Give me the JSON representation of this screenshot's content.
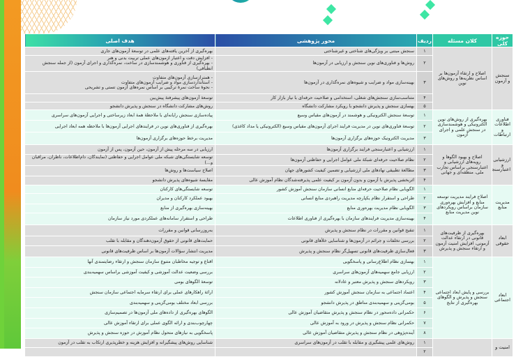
{
  "headers": {
    "domain": "حوزه کلی",
    "macro": "کلان مسئله",
    "row": "ردیف",
    "axis": "محور پژوهشی",
    "goal": "هدف اصلی"
  },
  "colors": {
    "header_start": "#3de0a6",
    "header_end": "#2b4fa6",
    "gray_row": "#dedede",
    "mint_row": "#e6faf3"
  },
  "sections": [
    {
      "domain": "سنجش و آزمون",
      "macro": "اصلاح و ارتقاء آزمون‌ها بر اساس نظریه‌ها و روش‌های نوین",
      "shade": "gray",
      "rows": [
        {
          "n": "۱",
          "axis": "سنجش مبتنی بر ویژگی‌های شناختی و غیرشناختی",
          "goal": "بهره‌گیری از آخرین یافته‌های علمی در توسعهٔ آزمون‌های جاری"
        },
        {
          "n": "۲",
          "axis": "روش‌ها و فناوری‌های نوین سنجش و ارزیابی در آزمون‌ها",
          "goal": "- افزایش دقت و اعتبار آزمون‌های عملی تربیت بدنی و هنر\n- بهره‌گیری از فناوری و هوشمندسازی در ساخت، نمره‌گذاری و اجرای آزمون (از جمله سنجش انطباقی)"
        },
        {
          "n": "۳",
          "axis": "بهینه‌سازی مواد و ضرایب و شیوه‌های نمره‌گذاری در آزمون‌ها",
          "goal": "- همترازسازی آزمون‌های متفاوت\n- استانداردسازی مواد و ضرایب آزمون‌های متفاوت\n- نحوهٔ ساخت نمرهٔ ترکیبی بر اساس نمره‌های آزمون تستی و تشریحی"
        },
        {
          "n": "۴",
          "axis": "متناسب‌سازی سنجش‌های شغلی، استخدامی و صلاحیت حرفه‌ای با نیاز بازار کار",
          "goal": "توسعهٔ آزمون‌های پیشرفتهٔ پیش‌بین"
        },
        {
          "n": "۵",
          "axis": "بهسازی سنجش و پذیرش دانشجو با رویکرد مشارکت دانشگاه",
          "goal": "روش‌های مشارکت دانشگاه در سنجش و پذیرش دانشجو"
        }
      ]
    },
    {
      "domain": "فناوری اطلاعات و ارتباطات",
      "macro": "بهره‌گیری از روش‌های نوین الکترونیکی و هوشمندسازی در سنجش علمی و اجرای آزمون",
      "shade": "mint",
      "rows": [
        {
          "n": "۱",
          "axis": "توسعهٔ سنجش الکترونیکی و هوشمند در آزمون‌های مقیاس وسیع",
          "goal": "پیاده‌سازی سنجش رایانه‌ای با ملاحظهٔ همهٔ ابعاد زیرساختی و اجرایی آزمون‌های سراسری"
        },
        {
          "n": "۲",
          "axis": "توسعهٔ فناوری‌های نوین در مدیریت فرایند اجرای آزمون‌های مقیاس وسیع (الکترونیکی یا مداد کاغذی)",
          "goal": "بهره‌گیری از فناوری‌های نوین در فرایندهای اجرایی آزمون‌ها با ملاحظه همه ابعاد اجرایی"
        },
        {
          "n": "۳",
          "axis": "مدیریت الکترونیک حوزه‌های برگزاری آزمون‌ها",
          "goal": "مدیریت برخط حوزه‌های برگزاری آزمون‌ها"
        }
      ]
    },
    {
      "domain": "ارزشیابی و اعتبارسنجی",
      "macro": "اصلاح و بهبود الگوها و رویه‌های ارزشیابی و اعتبارسنجی براساس تجارب ملی، منطقه‌ای و جهانی",
      "shade": "gray",
      "rows": [
        {
          "n": "۱",
          "axis": "ارزشیابی و اعتبارسنجی فرایند برگزاری آزمون‌ها",
          "goal": "ارزیابی در سه مرحله پیش از آزمون، حین آزمون، پس از آزمون"
        },
        {
          "n": "۲",
          "axis": "نظام صلاحیت حرفه‌ای شبکهٔ ملی عوامل اجرایی و حفاظتی آزمون‌ها",
          "goal": "توسعه شایستگی‌های شبکه ملی عوامل اجرایی و حفاظتی (نمایندگان، دام‌اطلاعات، ناظران، مراقبان و...)"
        },
        {
          "n": "۳",
          "axis": "مطالعهٔ تطبیقی نهادهای ملی ارزشیابی و تضمین کیفیت کشورهای جهان",
          "goal": "اصلاح سیاست‌ها و روش‌ها"
        },
        {
          "n": "۴",
          "axis": "اثربخشی پذیرش با آزمون و بدون آزمون بر کیفیت علمی پذیرفته‌شدگان نظام آموزش عالی",
          "goal": "مقایسهٔ شیوه‌های پذیرش دانشجو"
        }
      ]
    },
    {
      "domain": "مدیریت منابع",
      "macro": "اصلاح فرایند مدیریت توسعه منابع و افزایش بهره‌وری سازمان براساس رویکردهای نوین مدیریت منابع",
      "shade": "mint",
      "rows": [
        {
          "n": "۱",
          "axis": "الگویابی نظام صلاحیت حرفه‌ای منابع انسانی سازمان سنجش آموزش کشور",
          "goal": "توسعه شایستگی‌های کارکنان"
        },
        {
          "n": "۲",
          "axis": "طراحی و استقرار نظام یکپارچه مدیریت راهبردی منابع انسانی",
          "goal": "بهبود عملکرد کارکنان و مدیران"
        },
        {
          "n": "۳",
          "axis": "الگویابی نظام مدیریت بهره‌وری منابع",
          "goal": "بهینه‌سازی بهره‌گیری از منابع"
        },
        {
          "n": "۴",
          "axis": "بهینه‌سازی مدیریت فرایندهای سازمان با بهره‌گیری از فناوری اطلاعات",
          "goal": "طراحی و استقرار سامانه‌های عملکردی مورد نیاز سازمان"
        }
      ]
    },
    {
      "domain": "ابعاد حقوقی",
      "macro": "بهره‌گیری از ظرفیت‌های قانونی در ارتقاء عدالت آزمونی، افزایش امنیت آزمون و ارتقاء سنجش و پذیرش",
      "shade": "gray",
      "rows": [
        {
          "n": "۱",
          "axis": "تنقیح قوانین و مقررات در نظام سنجش و پذیرش",
          "goal": "به‌روزرسانی قوانین و مقررات"
        },
        {
          "n": "۲",
          "axis": "بررسی تخلفات و جرائم در آزمون‌ها و شناسایی خلأهای قانونی",
          "goal": "حمایت‌های قانونی از حقوق آزمون‌دهندگان و مقابله با تقلب"
        },
        {
          "n": "۳",
          "axis": "فعال‌سازی ظرفیت‌های قانونی تسهیل‌گر نظام سنجش و پذیرش",
          "goal": "مدیریت انتشار سؤالات آزمون‌ها بر اساس ظرفیت‌های قانونی"
        }
      ]
    },
    {
      "domain": "ابعاد اجتماعی",
      "macro": "بررسی و پایش ابعاد اجتماعی سنجش و پذیرش و الگوهای بهره‌گیری از نتایج",
      "shade": "mint",
      "rows": [
        {
          "n": "۱",
          "axis": "بهسازی نظام اطلاع‌رسانی و پاسخگویی",
          "goal": "اقناع و توجیه مخاطبان متنوع سازمان سنجش و ارتقاء رضایتمندی آنها"
        },
        {
          "n": "۲",
          "axis": "ارزیابی جامع سهمیه‌های آزمون‌های سراسری",
          "goal": "بررسی وضعیت عدالت آموزشی و کیفیت آموزشی براساس سهمیه‌بندی"
        },
        {
          "n": "۳",
          "axis": "رویکردهای سنجش و پذیرش معتبر و عادلانه",
          "goal": "توسعهٔ الگوهای بومی"
        },
        {
          "n": "۴",
          "axis": "اعتماد اجتماعی به سازمان سنجش آموزش کشور",
          "goal": "ارائهٔ راهکارهای عملی برای ارتقاء سرمایه اجتماعی سازمان سنجش"
        },
        {
          "n": "۵",
          "axis": "بومی‌گزینی و سهمیه‌بندی مناطق در پذیرش دانشجو",
          "goal": "بررسی ابعاد مختلف بومی‌گزینی و سهمیه‌بندی"
        },
        {
          "n": "۶",
          "axis": "حکمرانی داده‌محور در نظام سنجش و پذیرش متقاضیان آموزش عالی",
          "goal": "الگوهای بهره‌گیری از داده‌های ملی آزمون‌ها در تصمیم‌سازی"
        },
        {
          "n": "۷",
          "axis": "حکمرانی نظام سنجش و پذیرش در ورود به آموزش عالی",
          "goal": "چهارچوب‌بندی و ارائه الگوی عملی برای ارتقاء آموزش عالی"
        },
        {
          "n": "۸",
          "axis": "آینده‌پژوهی در نظام سنجش و پذیرش متقاضیان آموزش عالی",
          "goal": "پاسخگویی به نیازهای متحول نظام آموزش در حوزه سنجش و پذیرش"
        }
      ]
    },
    {
      "domain": "امنیت و",
      "macro": "",
      "shade": "gray",
      "rows": [
        {
          "n": "۱",
          "axis": "روش‌های علمی پیشگیری و مقابله با تقلب در آزمون‌های سراسری",
          "goal": "شناسایی روش‌های پیشگیرانه و افزایش هزینه و خطرپذیری ارتکاب به تقلب در آزمون"
        },
        {
          "n": "۲",
          "axis": "",
          "goal": ""
        }
      ]
    }
  ]
}
